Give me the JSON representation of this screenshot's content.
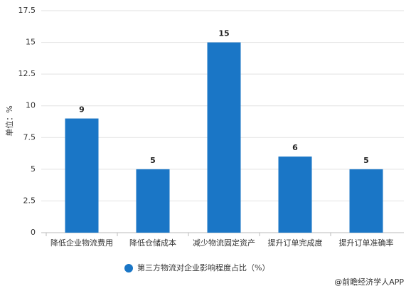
{
  "chart_data": {
    "type": "bar",
    "y_label": "单位：%",
    "categories": [
      "降低企业物流费用",
      "降低仓储成本",
      "减少物流固定资产",
      "提升订单完成度",
      "提升订单准确率"
    ],
    "series": [
      {
        "name": "第三方物流对企业影响程度占比（%）",
        "color": "#1a76c6",
        "values": [
          9,
          5,
          15,
          6,
          5
        ]
      }
    ],
    "ylim": [
      0,
      17.5
    ],
    "yticks": [
      0,
      2.5,
      5,
      7.5,
      10,
      12.5,
      15,
      17.5
    ],
    "grid": true,
    "source": "@前瞻经济学人APP"
  }
}
